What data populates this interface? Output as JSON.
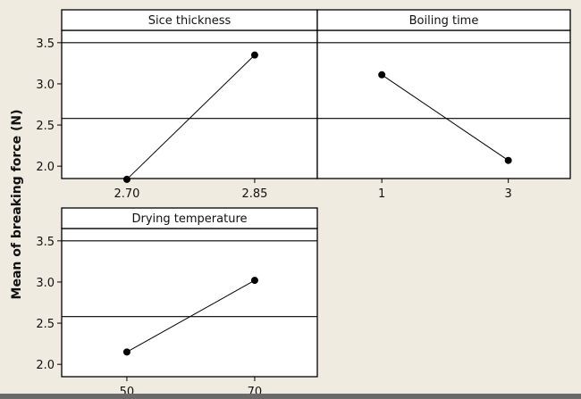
{
  "chart_data": {
    "type": "line",
    "ylabel": "Mean of breaking force (N)",
    "ylim": [
      1.85,
      3.65
    ],
    "yticks": [
      "2.0",
      "2.5",
      "3.0",
      "3.5"
    ],
    "reference_mean": 2.58,
    "grid": false,
    "panels": [
      {
        "title": "Sice thickness",
        "categories": [
          "2.70",
          "2.85"
        ],
        "values": [
          1.84,
          3.35
        ]
      },
      {
        "title": "Boiling time",
        "categories": [
          "1",
          "3"
        ],
        "values": [
          3.11,
          2.07
        ]
      },
      {
        "title": "Drying temperature",
        "categories": [
          "50",
          "70"
        ],
        "values": [
          2.15,
          3.02
        ]
      }
    ]
  }
}
